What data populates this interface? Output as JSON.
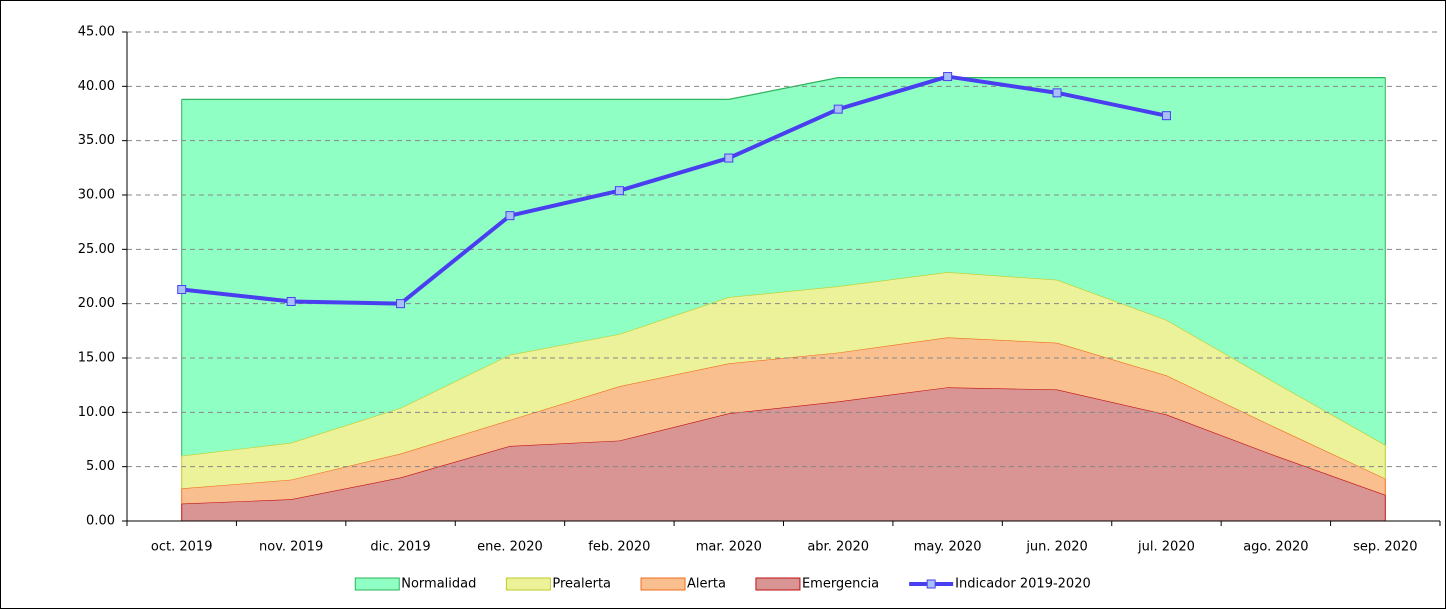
{
  "chart_data": {
    "type": "stacked-area-line",
    "categories": [
      "oct. 2019",
      "nov. 2019",
      "dic. 2019",
      "ene. 2020",
      "feb. 2020",
      "mar. 2020",
      "abr. 2020",
      "may. 2020",
      "jun. 2020",
      "jul. 2020",
      "ago. 2020",
      "sep. 2020"
    ],
    "series": [
      {
        "name": "Emergencia",
        "kind": "area",
        "color": "#d99494",
        "stroke": "#c01010",
        "values": [
          1.6,
          2.0,
          4.0,
          6.9,
          7.4,
          9.9,
          11.0,
          12.3,
          12.1,
          9.8,
          6.0,
          2.4
        ]
      },
      {
        "name": "Alerta",
        "kind": "area",
        "color": "#f9bf8f",
        "stroke": "#f06e1e",
        "values": [
          1.4,
          1.8,
          2.2,
          2.4,
          5.0,
          4.6,
          4.5,
          4.6,
          4.3,
          3.6,
          2.6,
          1.5
        ]
      },
      {
        "name": "Prealerta",
        "kind": "area",
        "color": "#ecf29a",
        "stroke": "#bfcc2a",
        "values": [
          3.0,
          3.4,
          4.2,
          6.0,
          4.8,
          6.1,
          6.1,
          6.0,
          5.8,
          5.1,
          4.1,
          3.1
        ]
      },
      {
        "name": "Normalidad",
        "kind": "area",
        "color": "#8fffc4",
        "stroke": "#2db35a",
        "values": [
          32.8,
          31.6,
          28.4,
          23.5,
          21.6,
          18.2,
          19.2,
          17.9,
          18.6,
          22.3,
          28.1,
          33.8
        ]
      },
      {
        "name": "Indicador 2019-2020",
        "kind": "line",
        "color": "#4a3ff0",
        "marker": "#a8c0f8",
        "values": [
          21.3,
          20.2,
          20.0,
          28.1,
          30.4,
          33.4,
          37.9,
          40.9,
          39.4,
          37.3,
          null,
          null
        ]
      }
    ],
    "legend_order": [
      3,
      2,
      1,
      0,
      4
    ],
    "stacked": true,
    "ylim": [
      0,
      45
    ],
    "yticks": [
      {
        "value": 0,
        "label": "0.00"
      },
      {
        "value": 5,
        "label": "5.00"
      },
      {
        "value": 10,
        "label": "10.00"
      },
      {
        "value": 15,
        "label": "15.00"
      },
      {
        "value": 20,
        "label": "20.00"
      },
      {
        "value": 25,
        "label": "25.00"
      },
      {
        "value": 30,
        "label": "30.00"
      },
      {
        "value": 35,
        "label": "35.00"
      },
      {
        "value": 40,
        "label": "40.00"
      },
      {
        "value": 45,
        "label": "45.00"
      }
    ],
    "grid": true
  }
}
